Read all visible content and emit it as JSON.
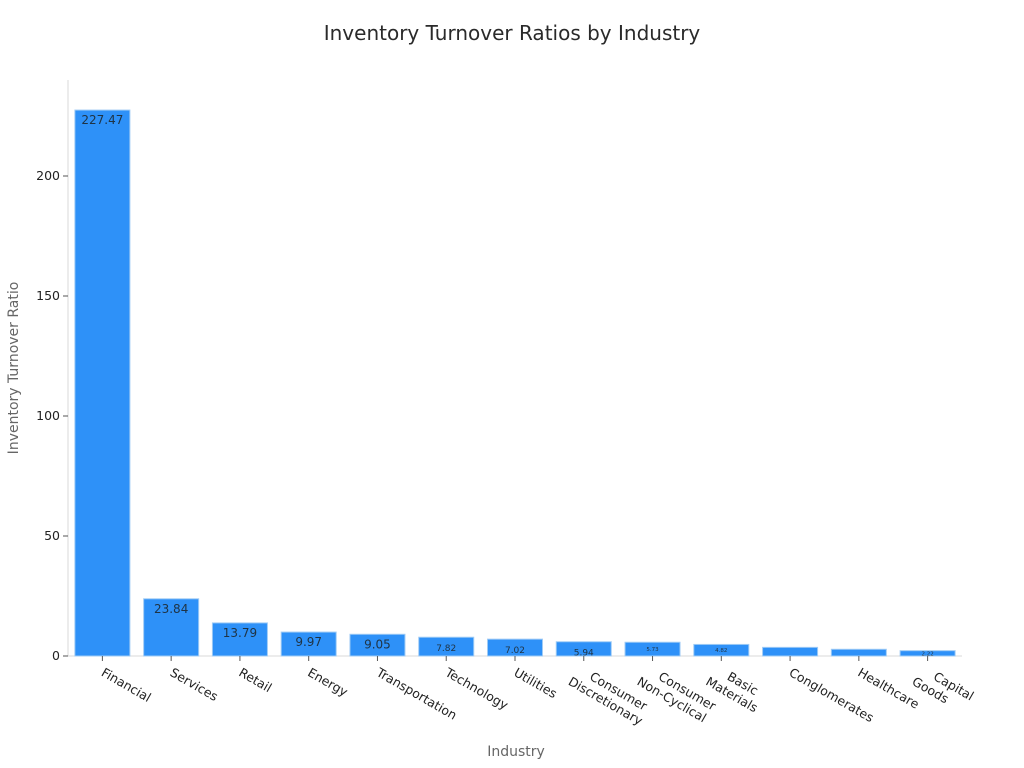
{
  "chart_data": {
    "type": "bar",
    "title": "Inventory Turnover Ratios by Industry",
    "xlabel": "Industry",
    "ylabel": "Inventory Turnover Ratio",
    "categories": [
      [
        "Financial"
      ],
      [
        "Services"
      ],
      [
        "Retail"
      ],
      [
        "Energy"
      ],
      [
        "Transportation"
      ],
      [
        "Technology"
      ],
      [
        "Utilities"
      ],
      [
        "Consumer",
        "Discretionary"
      ],
      [
        "Consumer",
        "Non-Cyclical"
      ],
      [
        "Basic",
        "Materials"
      ],
      [
        "Conglomerates"
      ],
      [
        "Healthcare"
      ],
      [
        "Capital",
        "Goods"
      ]
    ],
    "values": [
      227.47,
      23.84,
      13.79,
      9.97,
      9.05,
      7.82,
      7.02,
      5.94,
      5.73,
      4.82,
      3.6,
      2.8,
      2.22
    ],
    "value_labels": [
      "227.47",
      "23.84",
      "13.79",
      "9.97",
      "9.05",
      "7.82",
      "7.02",
      "5.94",
      "5.73",
      "4.82",
      "",
      "",
      "2.22"
    ],
    "yticks": [
      0,
      50,
      100,
      150,
      200
    ],
    "ylim": [
      0,
      240
    ],
    "grid": false,
    "legend": "none",
    "bar_color": "#2e91f8",
    "bar_edge_color": "#9fcbf5"
  }
}
